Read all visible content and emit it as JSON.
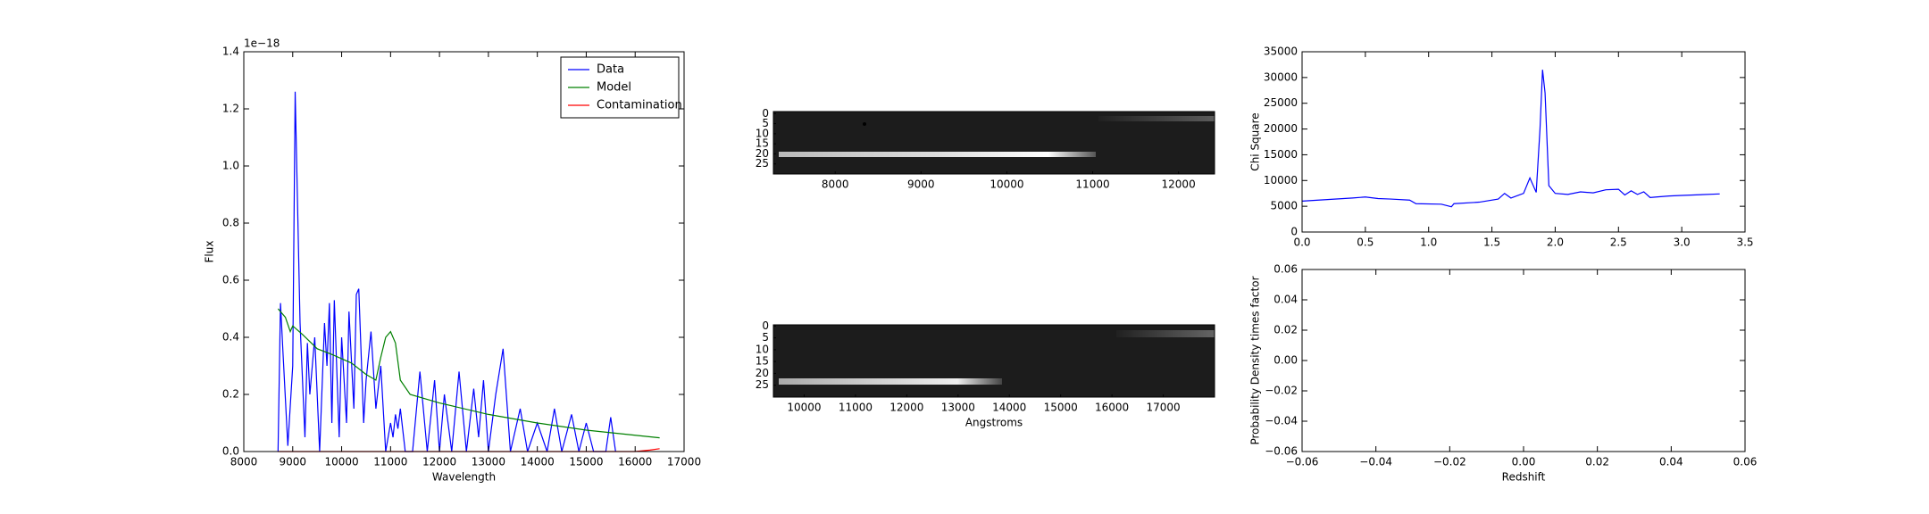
{
  "chart_data": [
    {
      "type": "line",
      "ylabel": "Flux",
      "xlabel": "Wavelength",
      "offset_text": "1e−18",
      "legend": "upper right",
      "xlim": [
        8000,
        17000
      ],
      "xticks": [
        8000,
        9000,
        10000,
        11000,
        12000,
        13000,
        14000,
        15000,
        16000,
        17000
      ],
      "ylim": [
        0,
        1.4
      ],
      "yticks": [
        {
          "value": 0,
          "label": "0.0"
        },
        {
          "value": 0.2,
          "label": "0.2"
        },
        {
          "value": 0.4,
          "label": "0.4"
        },
        {
          "value": 0.6,
          "label": "0.6"
        },
        {
          "value": 0.8,
          "label": "0.8"
        },
        {
          "value": 1.0,
          "label": "1.0"
        },
        {
          "value": 1.2,
          "label": "1.2"
        },
        {
          "value": 1.4,
          "label": "1.4"
        }
      ],
      "series": [
        {
          "name": "Data",
          "color": "#0000ff",
          "x": [
            8700,
            8750,
            8800,
            8900,
            9000,
            9050,
            9150,
            9250,
            9300,
            9350,
            9450,
            9550,
            9650,
            9700,
            9750,
            9800,
            9850,
            9950,
            10000,
            10100,
            10150,
            10250,
            10300,
            10350,
            10450,
            10500,
            10600,
            10700,
            10800,
            10900,
            11000,
            11050,
            11100,
            11150,
            11200,
            11300,
            11450,
            11600,
            11750,
            11900,
            12000,
            12100,
            12250,
            12400,
            12550,
            12700,
            12800,
            12900,
            13000,
            13150,
            13300,
            13450,
            13650,
            13800,
            14000,
            14200,
            14350,
            14500,
            14700,
            14850,
            15000,
            15150,
            15400,
            15500,
            15600
          ],
          "values": [
            0.0,
            0.52,
            0.35,
            0.02,
            0.3,
            1.26,
            0.45,
            0.05,
            0.38,
            0.2,
            0.4,
            0.0,
            0.45,
            0.3,
            0.52,
            0.1,
            0.53,
            0.05,
            0.4,
            0.1,
            0.49,
            0.15,
            0.55,
            0.57,
            0.1,
            0.25,
            0.42,
            0.15,
            0.3,
            0.0,
            0.1,
            0.05,
            0.13,
            0.08,
            0.15,
            0.0,
            0.0,
            0.28,
            0.0,
            0.25,
            0.0,
            0.2,
            0.0,
            0.28,
            0.0,
            0.22,
            0.05,
            0.25,
            0.0,
            0.2,
            0.36,
            0.0,
            0.15,
            0.0,
            0.1,
            0.0,
            0.15,
            0.0,
            0.13,
            0.0,
            0.1,
            0.0,
            0.0,
            0.12,
            0.0
          ]
        },
        {
          "name": "Model",
          "color": "#008000",
          "x": [
            8700,
            8850,
            8950,
            9000,
            9200,
            9500,
            9800,
            10200,
            10500,
            10700,
            10800,
            10900,
            11000,
            11100,
            11200,
            11400,
            12000,
            13000,
            14000,
            15000,
            16500
          ],
          "values": [
            0.5,
            0.47,
            0.42,
            0.44,
            0.41,
            0.36,
            0.34,
            0.31,
            0.27,
            0.25,
            0.33,
            0.4,
            0.42,
            0.38,
            0.25,
            0.2,
            0.17,
            0.13,
            0.1,
            0.075,
            0.048
          ]
        },
        {
          "name": "Contamination",
          "color": "#ff0000",
          "x": [
            8700,
            16000,
            16300,
            16500
          ],
          "values": [
            0,
            0,
            0.005,
            0.01
          ]
        }
      ]
    },
    {
      "type": "image",
      "inverted_y": true,
      "xlim": [
        7280,
        12420
      ],
      "xticks": [
        8000,
        9000,
        10000,
        11000,
        12000
      ],
      "ylim": [
        -1,
        30
      ],
      "yticks": [
        0,
        5,
        10,
        15,
        20,
        25
      ]
    },
    {
      "type": "image",
      "inverted_y": true,
      "xlabel": "Angstroms",
      "xlim": [
        9400,
        18000
      ],
      "xticks": [
        10000,
        11000,
        12000,
        13000,
        14000,
        15000,
        16000,
        17000
      ],
      "ylim": [
        -0.5,
        30
      ],
      "yticks": [
        0,
        5,
        10,
        15,
        20,
        25
      ]
    },
    {
      "type": "line",
      "ylabel": "Chi Square",
      "xlim": [
        0,
        3.5
      ],
      "xticks": [
        {
          "value": 0,
          "label": "0.0"
        },
        {
          "value": 0.5,
          "label": "0.5"
        },
        {
          "value": 1.0,
          "label": "1.0"
        },
        {
          "value": 1.5,
          "label": "1.5"
        },
        {
          "value": 2.0,
          "label": "2.0"
        },
        {
          "value": 2.5,
          "label": "2.5"
        },
        {
          "value": 3.0,
          "label": "3.0"
        },
        {
          "value": 3.5,
          "label": "3.5"
        }
      ],
      "ylim": [
        0,
        35000
      ],
      "yticks": [
        0,
        5000,
        10000,
        15000,
        20000,
        25000,
        30000,
        35000
      ],
      "series": [
        {
          "color": "#0000ff",
          "x": [
            0,
            0.2,
            0.4,
            0.5,
            0.6,
            0.7,
            0.85,
            0.9,
            1.1,
            1.18,
            1.2,
            1.4,
            1.55,
            1.6,
            1.65,
            1.75,
            1.8,
            1.85,
            1.88,
            1.9,
            1.92,
            1.95,
            2.0,
            2.1,
            2.2,
            2.3,
            2.4,
            2.5,
            2.55,
            2.6,
            2.65,
            2.7,
            2.75,
            2.8,
            2.9,
            3.0,
            3.3
          ],
          "values": [
            6000,
            6300,
            6600,
            6800,
            6500,
            6400,
            6200,
            5500,
            5400,
            4900,
            5500,
            5800,
            6400,
            7500,
            6600,
            7500,
            10500,
            7700,
            20000,
            31500,
            27000,
            9000,
            7500,
            7300,
            7800,
            7600,
            8200,
            8300,
            7200,
            8000,
            7300,
            7800,
            6700,
            6800,
            7000,
            7100,
            7400
          ]
        }
      ]
    },
    {
      "type": "line",
      "ylabel": "Probability Density times factor",
      "xlabel": "Redshift",
      "xlim": [
        -0.06,
        0.06
      ],
      "xticks": [
        {
          "value": -0.06,
          "label": "−0.06"
        },
        {
          "value": -0.04,
          "label": "−0.04"
        },
        {
          "value": -0.02,
          "label": "−0.02"
        },
        {
          "value": 0,
          "label": "0.00"
        },
        {
          "value": 0.02,
          "label": "0.02"
        },
        {
          "value": 0.04,
          "label": "0.04"
        },
        {
          "value": 0.06,
          "label": "0.06"
        }
      ],
      "ylim": [
        -0.06,
        0.06
      ],
      "yticks": [
        {
          "value": -0.06,
          "label": "−0.06"
        },
        {
          "value": -0.04,
          "label": "−0.04"
        },
        {
          "value": -0.02,
          "label": "−0.02"
        },
        {
          "value": 0,
          "label": "0.00"
        },
        {
          "value": 0.02,
          "label": "0.02"
        },
        {
          "value": 0.04,
          "label": "0.04"
        },
        {
          "value": 0.06,
          "label": "0.06"
        }
      ],
      "series": []
    }
  ]
}
